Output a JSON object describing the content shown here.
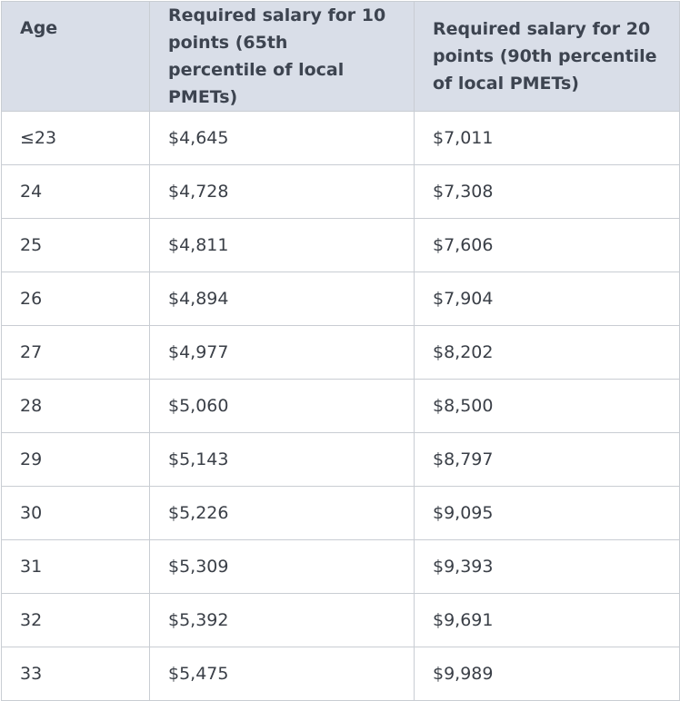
{
  "table": {
    "headers": [
      "Age",
      "Required salary for 10 points (65th percentile of local PMETs)",
      "Required salary for 20 points (90th percentile of local PMETs)"
    ],
    "rows": [
      [
        "≤23",
        "$4,645",
        "$7,011"
      ],
      [
        "24",
        "$4,728",
        "$7,308"
      ],
      [
        "25",
        "$4,811",
        "$7,606"
      ],
      [
        "26",
        "$4,894",
        "$7,904"
      ],
      [
        "27",
        "$4,977",
        "$8,202"
      ],
      [
        "28",
        "$5,060",
        "$8,500"
      ],
      [
        "29",
        "$5,143",
        "$8,797"
      ],
      [
        "30",
        "$5,226",
        "$9,095"
      ],
      [
        "31",
        "$5,309",
        "$9,393"
      ],
      [
        "32",
        "$5,392",
        "$9,691"
      ],
      [
        "33",
        "$5,475",
        "$9,989"
      ]
    ]
  }
}
